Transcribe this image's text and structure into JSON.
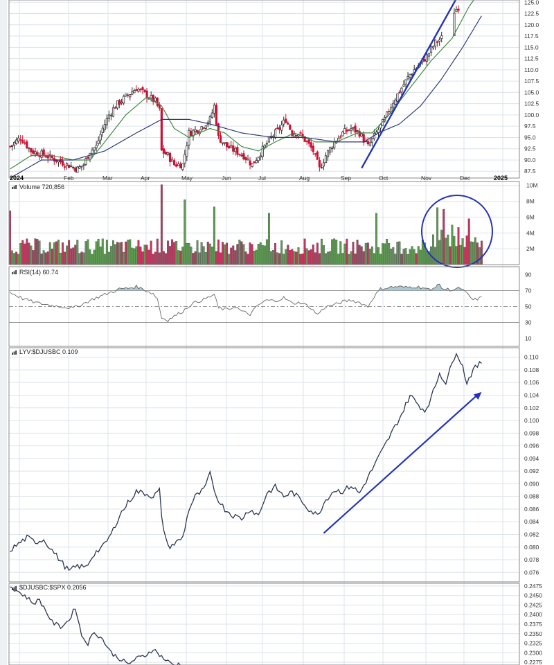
{
  "chart_data": [
    {
      "type": "candlestick",
      "panel": "price",
      "yticks": [
        87.5,
        90.0,
        92.5,
        95.0,
        97.5,
        100.0,
        102.5,
        105.0,
        107.5,
        110.0,
        112.5,
        115.0,
        117.5,
        120.0,
        122.5,
        125.0
      ],
      "ylim": [
        86,
        125.5
      ],
      "x_axis_labels": [
        "2024",
        "Feb",
        "Mar",
        "Apr",
        "May",
        "Jun",
        "Jul",
        "Aug",
        "Sep",
        "Oct",
        "Nov",
        "Dec",
        "2025"
      ],
      "close_anchors": [
        [
          0,
          93
        ],
        [
          5,
          95
        ],
        [
          10,
          92
        ],
        [
          17,
          91
        ],
        [
          22,
          90
        ],
        [
          27,
          89
        ],
        [
          32,
          88
        ],
        [
          35,
          89
        ],
        [
          38,
          92
        ],
        [
          41,
          93
        ],
        [
          44,
          97
        ],
        [
          47,
          100
        ],
        [
          50,
          102
        ],
        [
          55,
          104
        ],
        [
          60,
          106
        ],
        [
          63,
          105
        ],
        [
          66,
          104
        ],
        [
          69,
          103
        ],
        [
          71,
          101
        ],
        [
          72,
          92
        ],
        [
          75,
          91
        ],
        [
          78,
          89
        ],
        [
          82,
          89
        ],
        [
          85,
          96
        ],
        [
          90,
          97
        ],
        [
          95,
          99
        ],
        [
          97,
          102
        ],
        [
          99,
          95
        ],
        [
          103,
          93
        ],
        [
          107,
          92
        ],
        [
          111,
          91
        ],
        [
          115,
          89
        ],
        [
          118,
          91
        ],
        [
          121,
          93
        ],
        [
          124,
          95
        ],
        [
          128,
          97
        ],
        [
          131,
          99
        ],
        [
          134,
          96
        ],
        [
          137,
          96
        ],
        [
          141,
          94
        ],
        [
          144,
          92
        ],
        [
          147,
          88
        ],
        [
          150,
          91
        ],
        [
          154,
          94
        ],
        [
          158,
          96
        ],
        [
          162,
          97
        ],
        [
          166,
          96
        ],
        [
          170,
          93
        ],
        [
          174,
          96
        ],
        [
          178,
          99
        ],
        [
          182,
          103
        ],
        [
          186,
          106
        ],
        [
          190,
          109
        ],
        [
          194,
          111
        ],
        [
          198,
          113
        ],
        [
          202,
          116
        ],
        [
          205,
          117
        ],
        [
          208,
          118
        ],
        [
          210,
          118
        ],
        [
          211,
          123
        ],
        [
          213,
          124
        ]
      ],
      "sma_fast_anchors": [
        [
          0,
          88
        ],
        [
          10,
          91
        ],
        [
          20,
          91
        ],
        [
          30,
          90
        ],
        [
          38,
          90
        ],
        [
          45,
          94
        ],
        [
          55,
          100
        ],
        [
          65,
          104
        ],
        [
          72,
          102
        ],
        [
          78,
          97
        ],
        [
          85,
          95
        ],
        [
          95,
          97
        ],
        [
          102,
          96
        ],
        [
          110,
          93
        ],
        [
          118,
          92
        ],
        [
          126,
          94
        ],
        [
          135,
          96
        ],
        [
          145,
          94
        ],
        [
          155,
          94
        ],
        [
          165,
          96
        ],
        [
          172,
          96
        ],
        [
          180,
          100
        ],
        [
          190,
          106
        ],
        [
          200,
          112
        ],
        [
          210,
          117
        ],
        [
          218,
          124
        ],
        [
          224,
          128
        ]
      ],
      "sma_slow_anchors": [
        [
          0,
          86
        ],
        [
          15,
          90
        ],
        [
          30,
          90
        ],
        [
          45,
          92
        ],
        [
          60,
          96
        ],
        [
          72,
          99
        ],
        [
          85,
          99
        ],
        [
          95,
          98
        ],
        [
          110,
          96
        ],
        [
          125,
          95
        ],
        [
          140,
          95
        ],
        [
          155,
          94
        ],
        [
          168,
          94
        ],
        [
          175,
          96
        ],
        [
          185,
          98
        ],
        [
          195,
          102
        ],
        [
          205,
          108
        ],
        [
          215,
          115
        ],
        [
          224,
          122
        ]
      ],
      "trendline": [
        [
          167,
          88.2
        ],
        [
          212,
          125.8
        ]
      ]
    },
    {
      "type": "bar",
      "panel": "volume",
      "title": "Volume 720,856",
      "yticks_labels": [
        "2M",
        "4M",
        "6M",
        "8M",
        "10M"
      ],
      "yticks": [
        2,
        4,
        6,
        8,
        10
      ],
      "ylim": [
        0,
        10.5
      ],
      "spikes": [
        [
          0,
          6.8
        ],
        [
          72,
          10.1
        ],
        [
          83,
          8.2
        ],
        [
          97,
          7.3
        ],
        [
          123,
          6.5
        ],
        [
          174,
          6.5
        ],
        [
          203,
          7.2
        ],
        [
          206,
          7.0
        ],
        [
          210,
          5.0
        ],
        [
          218,
          5.8
        ]
      ],
      "annotation": "circle"
    },
    {
      "type": "line",
      "panel": "rsi",
      "title": "RSI(14) 60.74",
      "yticks": [
        10,
        30,
        50,
        70,
        90
      ],
      "ylim": [
        0,
        100
      ],
      "levels": [
        30,
        50,
        70
      ],
      "anchors": [
        [
          0,
          68
        ],
        [
          6,
          60
        ],
        [
          12,
          55
        ],
        [
          18,
          52
        ],
        [
          24,
          50
        ],
        [
          30,
          48
        ],
        [
          36,
          55
        ],
        [
          40,
          60
        ],
        [
          44,
          64
        ],
        [
          48,
          68
        ],
        [
          52,
          72
        ],
        [
          56,
          73
        ],
        [
          60,
          75
        ],
        [
          64,
          71
        ],
        [
          68,
          66
        ],
        [
          70,
          60
        ],
        [
          72,
          36
        ],
        [
          75,
          33
        ],
        [
          78,
          38
        ],
        [
          82,
          44
        ],
        [
          86,
          53
        ],
        [
          90,
          57
        ],
        [
          94,
          61
        ],
        [
          97,
          65
        ],
        [
          99,
          48
        ],
        [
          103,
          46
        ],
        [
          107,
          50
        ],
        [
          110,
          44
        ],
        [
          114,
          40
        ],
        [
          118,
          52
        ],
        [
          122,
          58
        ],
        [
          126,
          57
        ],
        [
          130,
          61
        ],
        [
          134,
          54
        ],
        [
          138,
          55
        ],
        [
          142,
          50
        ],
        [
          146,
          40
        ],
        [
          150,
          50
        ],
        [
          154,
          52
        ],
        [
          158,
          56
        ],
        [
          162,
          58
        ],
        [
          166,
          55
        ],
        [
          170,
          50
        ],
        [
          173,
          63
        ],
        [
          176,
          72
        ],
        [
          180,
          74
        ],
        [
          184,
          75
        ],
        [
          188,
          74
        ],
        [
          192,
          75
        ],
        [
          196,
          74
        ],
        [
          200,
          70
        ],
        [
          203,
          78
        ],
        [
          206,
          72
        ],
        [
          210,
          71
        ],
        [
          214,
          73
        ],
        [
          217,
          66
        ],
        [
          220,
          58
        ],
        [
          224,
          61
        ]
      ]
    },
    {
      "type": "line",
      "panel": "ratio",
      "title": "LYV:$DJUSBC 0.109",
      "yticks": [
        0.076,
        0.078,
        0.08,
        0.082,
        0.084,
        0.086,
        0.088,
        0.09,
        0.092,
        0.094,
        0.096,
        0.098,
        0.1,
        0.102,
        0.104,
        0.106,
        0.108,
        0.11
      ],
      "ylim": [
        0.0745,
        0.1115
      ],
      "anchors": [
        [
          0,
          0.0795
        ],
        [
          4,
          0.0805
        ],
        [
          8,
          0.0815
        ],
        [
          12,
          0.0808
        ],
        [
          16,
          0.0812
        ],
        [
          20,
          0.0795
        ],
        [
          24,
          0.0778
        ],
        [
          28,
          0.0762
        ],
        [
          32,
          0.077
        ],
        [
          36,
          0.0768
        ],
        [
          40,
          0.079
        ],
        [
          44,
          0.08
        ],
        [
          48,
          0.082
        ],
        [
          52,
          0.085
        ],
        [
          56,
          0.087
        ],
        [
          60,
          0.0888
        ],
        [
          64,
          0.0885
        ],
        [
          68,
          0.088
        ],
        [
          71,
          0.089
        ],
        [
          72,
          0.0845
        ],
        [
          75,
          0.08
        ],
        [
          78,
          0.0805
        ],
        [
          82,
          0.0815
        ],
        [
          85,
          0.086
        ],
        [
          88,
          0.088
        ],
        [
          92,
          0.089
        ],
        [
          95,
          0.0915
        ],
        [
          98,
          0.088
        ],
        [
          102,
          0.086
        ],
        [
          106,
          0.085
        ],
        [
          110,
          0.0845
        ],
        [
          114,
          0.086
        ],
        [
          118,
          0.085
        ],
        [
          122,
          0.0885
        ],
        [
          126,
          0.0895
        ],
        [
          130,
          0.088
        ],
        [
          134,
          0.0887
        ],
        [
          138,
          0.0875
        ],
        [
          142,
          0.086
        ],
        [
          146,
          0.085
        ],
        [
          150,
          0.0875
        ],
        [
          154,
          0.089
        ],
        [
          158,
          0.0888
        ],
        [
          162,
          0.0897
        ],
        [
          166,
          0.0885
        ],
        [
          170,
          0.091
        ],
        [
          174,
          0.0935
        ],
        [
          178,
          0.096
        ],
        [
          182,
          0.0985
        ],
        [
          186,
          0.101
        ],
        [
          190,
          0.104
        ],
        [
          194,
          0.1025
        ],
        [
          197,
          0.1015
        ],
        [
          200,
          0.1035
        ],
        [
          204,
          0.1075
        ],
        [
          207,
          0.106
        ],
        [
          210,
          0.109
        ],
        [
          212,
          0.111
        ],
        [
          215,
          0.1085
        ],
        [
          217,
          0.106
        ],
        [
          220,
          0.108
        ],
        [
          224,
          0.1092
        ]
      ],
      "arrow": [
        [
          149,
          0.0822
        ],
        [
          224,
          0.1045
        ]
      ]
    },
    {
      "type": "line",
      "panel": "ratio2",
      "title": "$DJUSBC:$SPX 0.2056",
      "yticks": [
        0.2275,
        0.23,
        0.2325,
        0.235,
        0.2375,
        0.24,
        0.2425,
        0.245,
        0.2475
      ],
      "ylim": [
        0.2268,
        0.2482
      ],
      "anchors": [
        [
          0,
          0.2475
        ],
        [
          4,
          0.246
        ],
        [
          8,
          0.2445
        ],
        [
          11,
          0.243
        ],
        [
          14,
          0.2438
        ],
        [
          17,
          0.241
        ],
        [
          20,
          0.238
        ],
        [
          24,
          0.2368
        ],
        [
          28,
          0.2385
        ],
        [
          31,
          0.242
        ],
        [
          34,
          0.2345
        ],
        [
          37,
          0.2325
        ],
        [
          40,
          0.2355
        ],
        [
          44,
          0.2335
        ],
        [
          48,
          0.23
        ],
        [
          52,
          0.2285
        ],
        [
          56,
          0.227
        ],
        [
          60,
          0.2285
        ],
        [
          64,
          0.2292
        ],
        [
          68,
          0.231
        ],
        [
          71,
          0.2295
        ],
        [
          74,
          0.228
        ],
        [
          78,
          0.2268
        ],
        [
          82,
          0.2272
        ]
      ]
    }
  ]
}
